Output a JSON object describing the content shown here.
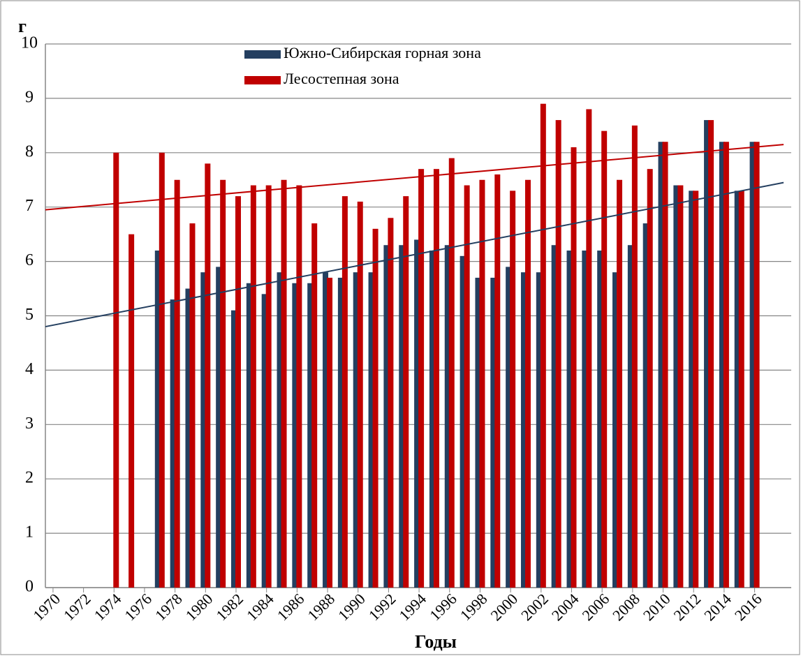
{
  "chart_data": {
    "type": "bar",
    "y_label": "г",
    "x_label": "Годы",
    "x": [
      1974,
      1975,
      1976,
      1977,
      1978,
      1979,
      1980,
      1981,
      1982,
      1983,
      1984,
      1985,
      1986,
      1987,
      1988,
      1989,
      1990,
      1991,
      1992,
      1993,
      1994,
      1995,
      1996,
      1997,
      1998,
      1999,
      2000,
      2001,
      2002,
      2003,
      2004,
      2005,
      2006,
      2007,
      2008,
      2009,
      2010,
      2011,
      2012,
      2013,
      2014,
      2015,
      2016
    ],
    "series": [
      {
        "name": "Южно-Сибирская горная зона",
        "color": "#243f60",
        "values": [
          null,
          null,
          null,
          6.2,
          5.3,
          5.5,
          5.8,
          5.9,
          5.1,
          5.6,
          5.4,
          5.8,
          5.6,
          5.6,
          5.8,
          5.7,
          5.8,
          5.8,
          6.3,
          6.3,
          6.4,
          6.2,
          6.3,
          6.1,
          5.7,
          5.7,
          5.9,
          5.8,
          5.8,
          6.3,
          6.2,
          6.2,
          6.2,
          5.8,
          6.3,
          6.7,
          8.2,
          7.4,
          7.3,
          8.6,
          8.2,
          7.3,
          8.2
        ]
      },
      {
        "name": "Лесостепная зона",
        "color": "#c00000",
        "values": [
          8.0,
          6.5,
          null,
          8.0,
          7.5,
          6.7,
          7.8,
          7.5,
          7.2,
          7.4,
          7.4,
          7.5,
          7.4,
          6.7,
          5.7,
          7.2,
          7.1,
          6.6,
          6.8,
          7.2,
          7.7,
          7.7,
          7.9,
          7.4,
          7.5,
          7.6,
          7.3,
          7.5,
          8.9,
          8.6,
          8.1,
          8.8,
          8.4,
          7.5,
          8.5,
          7.7,
          8.2,
          7.4,
          7.3,
          8.6,
          8.2,
          7.3,
          8.2
        ]
      }
    ],
    "trendlines": [
      {
        "color": "#243f60",
        "x": [
          1969.5,
          2017.9
        ],
        "values": [
          4.8,
          7.45
        ]
      },
      {
        "color": "#c00000",
        "x": [
          1969.5,
          2017.9
        ],
        "values": [
          6.95,
          8.15
        ]
      }
    ],
    "xlim": [
      1969.5,
      2018.4
    ],
    "xticks": [
      1970,
      1972,
      1974,
      1976,
      1978,
      1980,
      1982,
      1984,
      1986,
      1988,
      1990,
      1992,
      1994,
      1996,
      1998,
      2000,
      2002,
      2004,
      2006,
      2008,
      2010,
      2012,
      2014,
      2016
    ],
    "ylim": [
      0,
      10
    ],
    "yticks": [
      0,
      1,
      2,
      3,
      4,
      5,
      6,
      7,
      8,
      9,
      10
    ],
    "grid": true,
    "legend": "top"
  }
}
